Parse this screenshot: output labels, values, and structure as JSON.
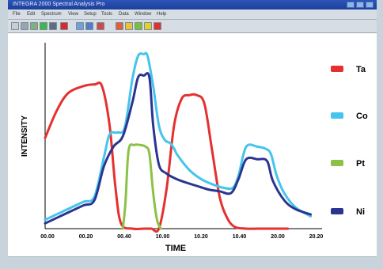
{
  "window": {
    "title": "INTEGRA 2000 Spectral Analysis Pro",
    "titlebar_button_colors": [
      "#7ba4d8",
      "#9ec0e8",
      "#6f97cf",
      "#9ec0e8",
      "#4b79c4",
      "#d0dff3",
      "#3a63ad"
    ]
  },
  "menubar": {
    "items": [
      "File",
      "Edit",
      "Spectrum",
      "View",
      "Setup",
      "Tools",
      "Data",
      "Window",
      "Help"
    ]
  },
  "toolbar": {
    "buttons": [
      {
        "icon": "grid-icon",
        "color": "#c7cfd6"
      },
      {
        "icon": "plot-icon",
        "color": "#98a6b3"
      },
      {
        "icon": "tool-icon",
        "color": "#7fb27c"
      },
      {
        "icon": "chart-icon",
        "color": "#3db84a"
      },
      {
        "icon": "zoom-icon",
        "color": "#5c6e80"
      },
      {
        "icon": "stop-icon",
        "color": "#d92b2b"
      },
      {
        "icon": "graph-icon",
        "color": "#6fa0da"
      },
      {
        "icon": "table-icon",
        "color": "#4f7fc8"
      },
      {
        "icon": "export-icon",
        "color": "#cc4c4c"
      },
      {
        "icon": "settings-icon",
        "color": "#e0603c"
      },
      {
        "icon": "refresh-icon",
        "color": "#e8c33a"
      },
      {
        "icon": "next-icon",
        "color": "#77c23b"
      },
      {
        "icon": "mark-icon",
        "color": "#e0d22c"
      },
      {
        "icon": "record-icon",
        "color": "#e03131"
      }
    ]
  },
  "chart_data": {
    "type": "line",
    "xlabel": "TIME",
    "ylabel": "INTENSITY",
    "x_tick_labels": [
      "00.00",
      "00.20",
      "00.40",
      "10.00",
      "10.20",
      "10.40",
      "20.00",
      "20.20"
    ],
    "xlim": [
      0,
      7.3
    ],
    "ylim": [
      0,
      100
    ],
    "grid": false,
    "legend_position": "right",
    "series": [
      {
        "name": "Ta",
        "color": "#e53030",
        "x": [
          0,
          0.3,
          0.6,
          1.0,
          1.3,
          1.5,
          1.7,
          1.85,
          2.0,
          2.3,
          2.6,
          2.8,
          3.0,
          3.2,
          3.4,
          3.6,
          3.8,
          4.0,
          4.2,
          4.4,
          4.6,
          4.8,
          5.0,
          5.3,
          5.6,
          6.0,
          6.4
        ],
        "y": [
          51,
          66,
          76,
          80,
          81,
          80,
          58,
          24,
          3,
          0,
          0,
          0,
          0,
          22,
          58,
          73,
          75,
          75,
          70,
          44,
          18,
          6,
          1,
          0,
          0,
          0,
          0
        ]
      },
      {
        "name": "Co",
        "color": "#45c4ec",
        "x": [
          0,
          0.5,
          1.0,
          1.3,
          1.55,
          1.7,
          1.9,
          2.1,
          2.3,
          2.45,
          2.6,
          2.7,
          2.85,
          3.0,
          3.15,
          3.3,
          3.4,
          3.5,
          3.8,
          4.1,
          4.4,
          4.7,
          4.95,
          5.1,
          5.3,
          5.6,
          5.8,
          5.95,
          6.1,
          6.3,
          6.6,
          7.0
        ],
        "y": [
          5,
          10,
          15,
          18,
          40,
          53,
          54,
          57,
          84,
          97,
          98,
          97,
          80,
          58,
          50,
          48,
          45,
          41,
          33,
          28,
          25,
          23,
          23,
          30,
          46,
          46,
          45,
          42,
          30,
          20,
          12,
          7
        ]
      },
      {
        "name": "Pt",
        "color": "#8bc246",
        "x": [
          2.05,
          2.12,
          2.2,
          2.35,
          2.5,
          2.65,
          2.75,
          2.85,
          2.95,
          3.05
        ],
        "y": [
          0,
          15,
          44,
          47,
          47,
          46,
          42,
          20,
          5,
          0
        ]
      },
      {
        "name": "Ni",
        "color": "#2b3590",
        "x": [
          0,
          0.5,
          1.0,
          1.3,
          1.55,
          1.8,
          2.05,
          2.3,
          2.45,
          2.6,
          2.75,
          2.85,
          3.0,
          3.2,
          3.45,
          3.7,
          4.0,
          4.3,
          4.6,
          4.9,
          5.1,
          5.3,
          5.6,
          5.85,
          6.0,
          6.3,
          6.6,
          7.0
        ],
        "y": [
          3,
          8,
          13,
          16,
          35,
          46,
          52,
          71,
          85,
          86,
          85,
          58,
          36,
          31,
          28,
          26,
          24,
          22,
          21,
          20,
          28,
          39,
          39,
          38,
          27,
          16,
          11,
          8
        ]
      }
    ]
  },
  "statusbar": {
    "text": ""
  }
}
